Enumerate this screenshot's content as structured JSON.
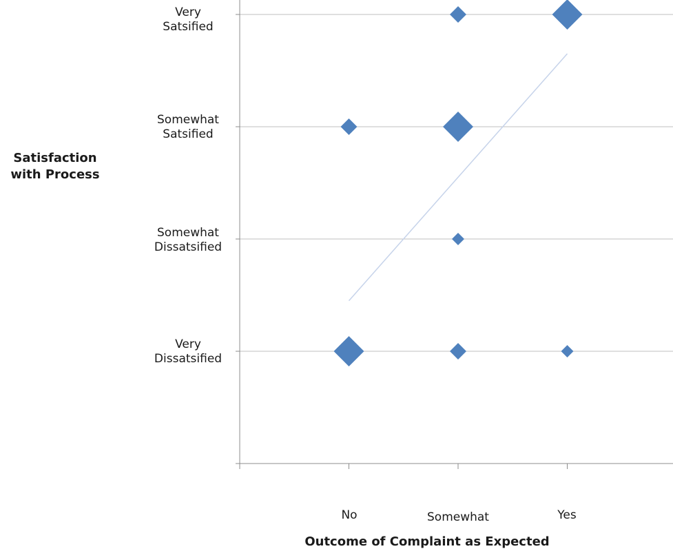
{
  "chart_data": {
    "type": "scatter",
    "title": "",
    "xlabel": "Outcome of Complaint as Expected",
    "ylabel": "Satisfaction with Process",
    "x_categories": [
      "No",
      "Somewhat",
      "Yes"
    ],
    "y_categories": [
      "Very Dissatsified",
      "Somewhat Dissatsified",
      "Somewhat Satsified",
      "Very Satsified"
    ],
    "y_category_lines": [
      [
        "Very",
        "Dissatsified"
      ],
      [
        "Somewhat",
        "Dissatsified"
      ],
      [
        "Somewhat",
        "Satsified"
      ],
      [
        "Very",
        "Satsified"
      ]
    ],
    "xlim": [
      0,
      4
    ],
    "ylim": [
      0,
      5
    ],
    "grid": "horizontal",
    "legend": "none",
    "marker": "diamond",
    "marker_color": "#4f81bd",
    "trendline_color": "#c6d3ea",
    "points": [
      {
        "x": "No",
        "y": "Very Dissatsified",
        "size": 3
      },
      {
        "x": "No",
        "y": "Somewhat Satsified",
        "size": 2
      },
      {
        "x": "Somewhat",
        "y": "Very Dissatsified",
        "size": 2
      },
      {
        "x": "Somewhat",
        "y": "Somewhat Dissatsified",
        "size": 1
      },
      {
        "x": "Somewhat",
        "y": "Somewhat Satsified",
        "size": 3
      },
      {
        "x": "Somewhat",
        "y": "Very Satsified",
        "size": 2
      },
      {
        "x": "Yes",
        "y": "Very Dissatsified",
        "size": 1
      },
      {
        "x": "Yes",
        "y": "Very Satsified",
        "size": 3
      }
    ],
    "trendline": {
      "type": "linear",
      "from": {
        "x": "No",
        "y": 1.45
      },
      "to": {
        "x": "Yes",
        "y": 3.65
      }
    }
  }
}
